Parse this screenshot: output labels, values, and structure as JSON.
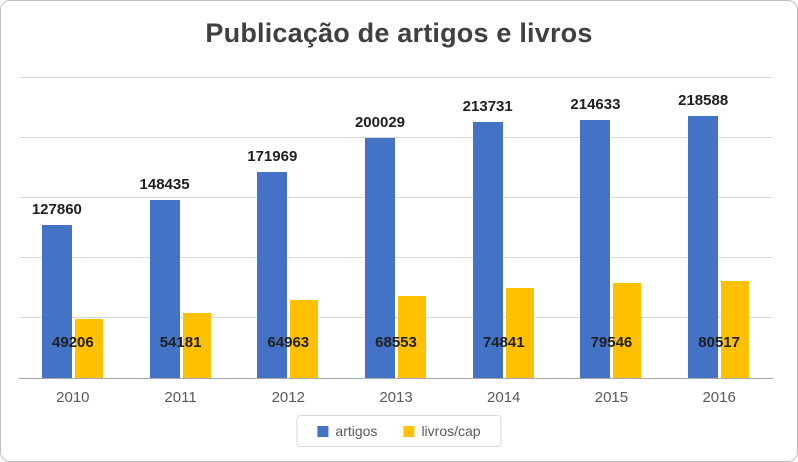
{
  "chart_data": {
    "type": "bar",
    "title": "Publicação de artigos e livros",
    "categories": [
      "2010",
      "2011",
      "2012",
      "2013",
      "2014",
      "2015",
      "2016"
    ],
    "series": [
      {
        "name": "artigos",
        "color": "#4472C4",
        "values": [
          127860,
          148435,
          171969,
          200029,
          213731,
          214633,
          218588
        ]
      },
      {
        "name": "livros/cap",
        "color": "#FFC000",
        "values": [
          49206,
          54181,
          64963,
          68553,
          74841,
          79546,
          80517
        ]
      }
    ],
    "xlabel": "",
    "ylabel": "",
    "ylim": [
      0,
      250000
    ],
    "gridline_step": 50000,
    "grid": true,
    "data_labels": true,
    "legend_position": "bottom",
    "colors": {
      "title_text": "#404040",
      "axis_line": "#a6a6a6",
      "gridline": "#d9d9d9",
      "category_text": "#595959",
      "data_label_text": "#1f1f1f",
      "frame_border": "#bfbfbf"
    }
  }
}
